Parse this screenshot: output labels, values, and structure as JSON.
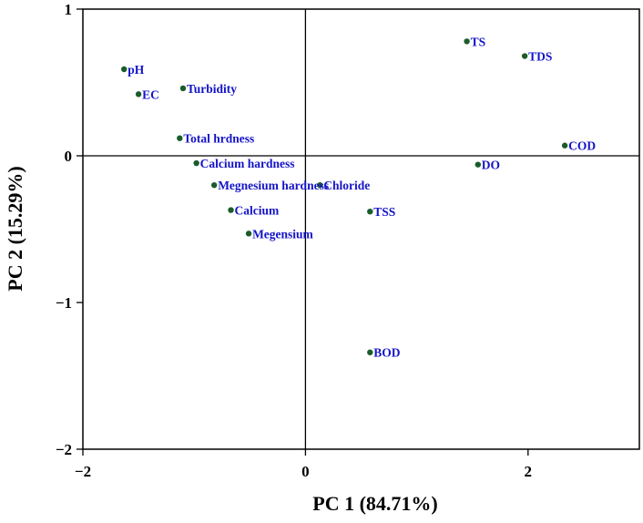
{
  "chart_data": {
    "type": "scatter",
    "title": "",
    "xlabel": "PC 1 (84.71%)",
    "ylabel": "PC 2 (15.29%)",
    "xlim": [
      -2,
      3
    ],
    "ylim": [
      -2,
      1
    ],
    "xticks": [
      -2,
      0,
      2
    ],
    "yticks": [
      -2,
      -1,
      0,
      1
    ],
    "xtick_labels": [
      "−2",
      "0",
      "2"
    ],
    "ytick_labels": [
      "−2",
      "−1",
      "0",
      "1"
    ],
    "grid": false,
    "reference_lines": {
      "x": 0,
      "y": 0
    },
    "marker_color": "#1a5c2a",
    "label_color": "#1414c8",
    "points": [
      {
        "label": "pH",
        "x": -1.63,
        "y": 0.59
      },
      {
        "label": "EC",
        "x": -1.5,
        "y": 0.42
      },
      {
        "label": "Turbidity",
        "x": -1.1,
        "y": 0.46
      },
      {
        "label": "Total hrdness",
        "x": -1.13,
        "y": 0.12
      },
      {
        "label": "Calcium hardness",
        "x": -0.98,
        "y": -0.05
      },
      {
        "label": "Megnesium hardness",
        "x": -0.82,
        "y": -0.2
      },
      {
        "label": "Calcium",
        "x": -0.67,
        "y": -0.37
      },
      {
        "label": "Megensium",
        "x": -0.51,
        "y": -0.53
      },
      {
        "label": "Chloride",
        "x": 0.13,
        "y": -0.2
      },
      {
        "label": "TSS",
        "x": 0.58,
        "y": -0.38
      },
      {
        "label": "BOD",
        "x": 0.58,
        "y": -1.34
      },
      {
        "label": "TS",
        "x": 1.45,
        "y": 0.78
      },
      {
        "label": "TDS",
        "x": 1.97,
        "y": 0.68
      },
      {
        "label": "DO",
        "x": 1.55,
        "y": -0.06
      },
      {
        "label": "COD",
        "x": 2.33,
        "y": 0.07
      }
    ]
  }
}
